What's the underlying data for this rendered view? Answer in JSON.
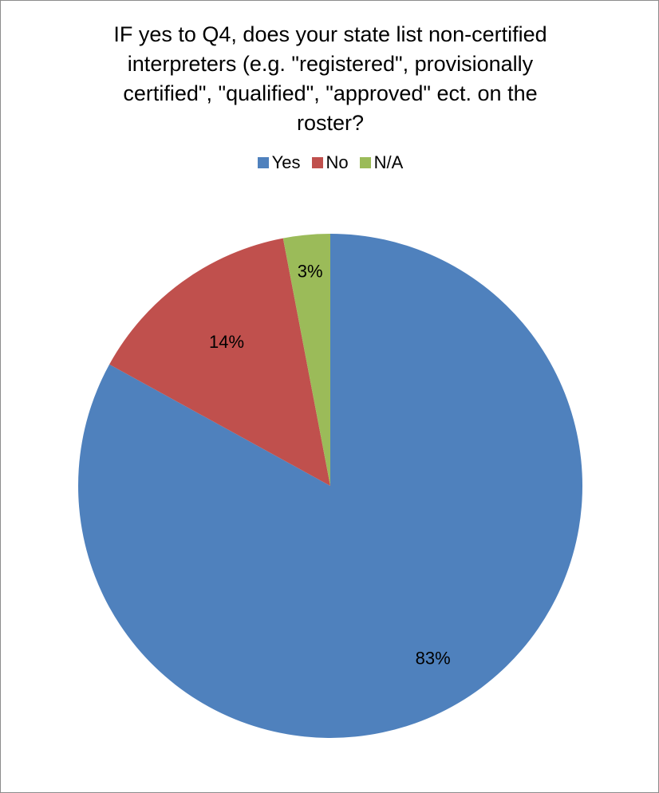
{
  "chart_data": {
    "type": "pie",
    "title": "IF yes to Q4, does your state list non-certified interpreters (e.g. \"registered\", provisionally certified\", \"qualified\", \"approved\" ect. on the roster?",
    "categories": [
      "Yes",
      "No",
      "N/A"
    ],
    "values": [
      83,
      14,
      3
    ],
    "labels": [
      "83%",
      "14%",
      "3%"
    ],
    "colors": [
      "#4f81bd",
      "#c0504d",
      "#9bbb59"
    ],
    "legend_position": "top"
  }
}
